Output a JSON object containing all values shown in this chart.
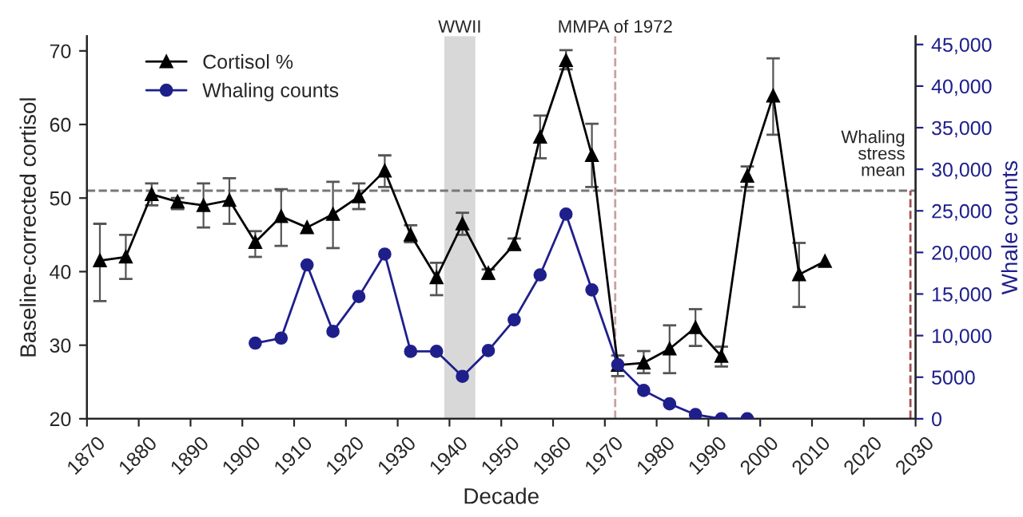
{
  "chart_data": {
    "type": "line",
    "xlabel": "Decade",
    "ylabel": "Baseline-corrected cortisol",
    "y2label": "Whale counts",
    "x": [
      1872.5,
      1877.5,
      1882.5,
      1887.5,
      1892.5,
      1897.5,
      1902.5,
      1907.5,
      1912.5,
      1917.5,
      1922.5,
      1927.5,
      1932.5,
      1937.5,
      1942.5,
      1947.5,
      1952.5,
      1957.5,
      1962.5,
      1967.5,
      1972.5,
      1977.5,
      1982.5,
      1987.5,
      1992.5,
      1997.5,
      2002.5,
      2007.5,
      2012.5
    ],
    "series": [
      {
        "name": "Cortisol %",
        "color": "#000000",
        "marker": "triangle",
        "values": [
          41.5,
          42,
          50.5,
          49.5,
          49,
          49.7,
          44,
          47.5,
          46,
          47.8,
          50.2,
          53.7,
          45,
          39.2,
          46.5,
          39.8,
          43.7,
          58.3,
          68.7,
          55.8,
          27.3,
          27.6,
          29.5,
          32.4,
          28.5,
          53,
          63.9,
          39.6,
          41.4
        ],
        "errors": [
          [
            36,
            46.5
          ],
          [
            39,
            45
          ],
          [
            49,
            52
          ],
          [
            48.5,
            50
          ],
          [
            46,
            52
          ],
          [
            46.5,
            52.7
          ],
          [
            42,
            45.5
          ],
          [
            43.5,
            51.2
          ],
          null,
          [
            43.2,
            52.2
          ],
          [
            48.5,
            52
          ],
          [
            51.5,
            55.8
          ],
          [
            44,
            46.3
          ],
          [
            36.8,
            41.2
          ],
          [
            45,
            48
          ],
          [
            39,
            40.3
          ],
          [
            43,
            44.5
          ],
          [
            55.4,
            61.2
          ],
          [
            67.5,
            70.1
          ],
          [
            51.5,
            60.1
          ],
          [
            25.8,
            28.6
          ],
          [
            26.2,
            29.2
          ],
          [
            26.2,
            32.7
          ],
          [
            29.9,
            34.9
          ],
          [
            27.1,
            29.8
          ],
          [
            51.5,
            54.3
          ],
          [
            58.6,
            69
          ],
          [
            35.2,
            43.9
          ],
          null
        ]
      },
      {
        "name": "Whaling counts",
        "color": "#1f1f8c",
        "marker": "circle",
        "axis": "y2",
        "values": [
          null,
          null,
          null,
          null,
          null,
          null,
          9100,
          9700,
          18500,
          10500,
          14700,
          19800,
          8100,
          8100,
          5100,
          8200,
          11900,
          17300,
          24600,
          15500,
          6500,
          3400,
          1800,
          500,
          0,
          0,
          null,
          null,
          null
        ]
      }
    ],
    "xlim": [
      1870,
      2030
    ],
    "xticks": [
      1870,
      1880,
      1890,
      1900,
      1910,
      1920,
      1930,
      1940,
      1950,
      1960,
      1970,
      1980,
      1990,
      2000,
      2010,
      2020,
      2030
    ],
    "ylim": [
      20,
      72
    ],
    "yticks": [
      20,
      30,
      40,
      50,
      60,
      70
    ],
    "y2lim": [
      0,
      46000
    ],
    "y2ticks": [
      0,
      5000,
      {
        "value": 10000,
        "label": "10,000"
      },
      {
        "value": 15000,
        "label": "15,000"
      },
      {
        "value": 20000,
        "label": "20,000"
      },
      {
        "value": 25000,
        "label": "25,000"
      },
      {
        "value": 30000,
        "label": "30,000"
      },
      {
        "value": 35000,
        "label": "35,000"
      },
      {
        "value": 40000,
        "label": "40,000"
      },
      {
        "value": 45000,
        "label": "45,000"
      }
    ],
    "ref_lines": [
      {
        "axis": "y",
        "value": 51,
        "label": null,
        "color": "#777777",
        "line_style": "dashed"
      },
      {
        "axis": "x",
        "value": 1972,
        "label": "MMPA of 1972",
        "color": "#c9a0a0",
        "line_style": "dashed"
      },
      {
        "axis": "x",
        "value": 2029,
        "label": "Whaling stress mean",
        "color": "#a05050",
        "line_style": "dashed"
      }
    ],
    "bands": [
      {
        "axis": "x",
        "from": 1939,
        "to": 1945,
        "label": "WWII",
        "color": "#d8d8d8"
      }
    ],
    "legend": "top left",
    "grid": false,
    "line_style": "solid"
  }
}
